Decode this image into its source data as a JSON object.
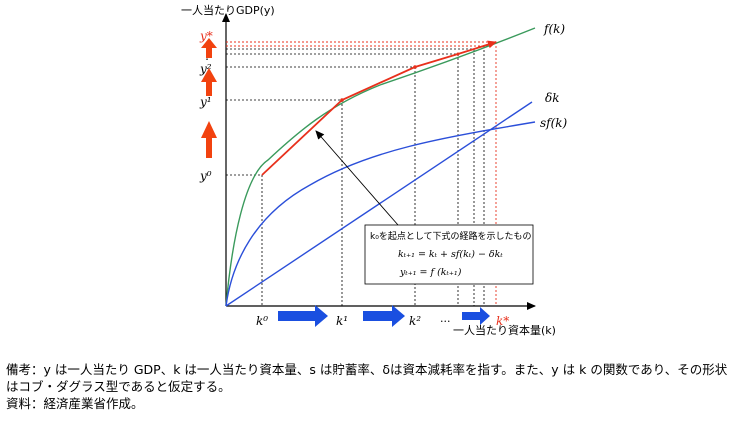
{
  "axes": {
    "y_label": "一人当たりGDP(y)",
    "x_label": "一人当たり資本量(k)"
  },
  "curve_labels": {
    "f": "f(k)",
    "delta": "δk",
    "sf": "sf(k)"
  },
  "y_ticks": [
    {
      "label": "y⁰"
    },
    {
      "label": "y¹"
    },
    {
      "label": "y²"
    },
    {
      "label": "y*"
    }
  ],
  "y_ellipsis": ":",
  "x_ticks": [
    {
      "label": "k⁰"
    },
    {
      "label": "k¹"
    },
    {
      "label": "k²"
    },
    {
      "label": "k*"
    }
  ],
  "x_ellipsis": "···",
  "annotation": {
    "line1": "k₀を起点として下式の経路を示したもの",
    "eq1": "kₜ₊₁ = kₜ + sf(kₜ) − δkₜ",
    "eq2": "yₜ₊₁ = f (kₜ₊₁)"
  },
  "colors": {
    "f_curve": "#3a9a5c",
    "sf_curve": "#2b4fd9",
    "delta_line": "#2b4fd9",
    "path": "#e8301c",
    "up_arrow": "#f2420f",
    "right_arrow": "#1a4fe0",
    "red_label": "#e8301c"
  },
  "notes": {
    "remark": "備考：y は一人当たり GDP、k は一人当たり資本量、s は貯蓄率、δは資本減耗率を指す。また、y は k の関数であり、その形状はコブ・ダグラス型であると仮定する。",
    "source": "資料：経済産業省作成。"
  }
}
